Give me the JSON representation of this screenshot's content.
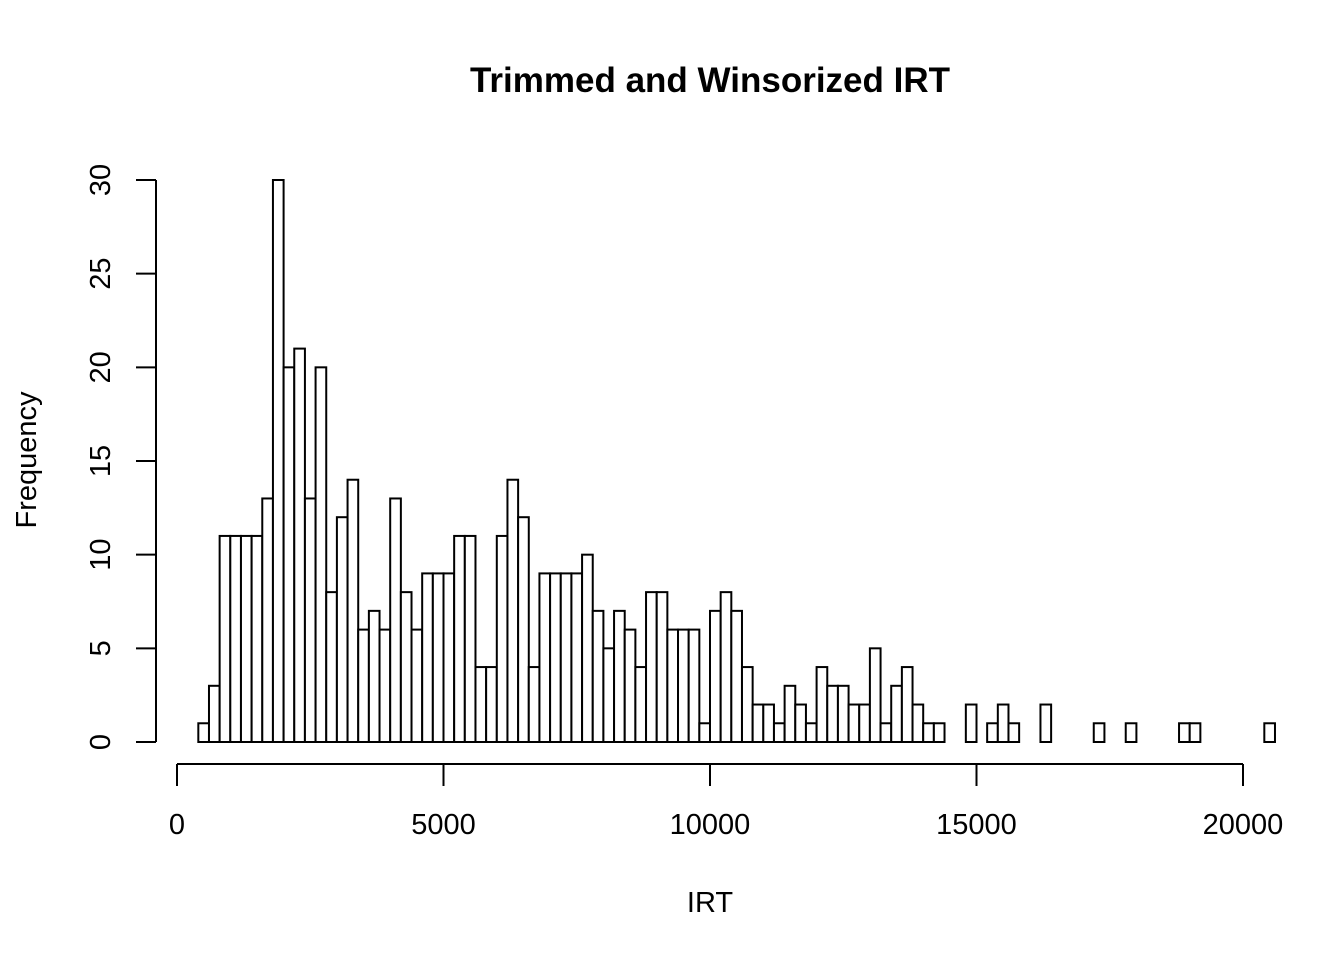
{
  "chart_data": {
    "type": "bar",
    "title": "Trimmed and Winsorized IRT",
    "xlabel": "IRT",
    "ylabel": "Frequency",
    "xlim": [
      0,
      20000
    ],
    "ylim": [
      0,
      30
    ],
    "x_ticks": [
      "0",
      "5000",
      "10000",
      "15000",
      "20000"
    ],
    "y_ticks": [
      "0",
      "5",
      "10",
      "15",
      "20",
      "25",
      "30"
    ],
    "bin_width": 200,
    "bin_start": 400,
    "values": [
      1,
      3,
      11,
      11,
      11,
      11,
      13,
      30,
      20,
      21,
      13,
      20,
      8,
      12,
      14,
      6,
      7,
      6,
      13,
      8,
      6,
      9,
      9,
      9,
      11,
      11,
      4,
      4,
      11,
      14,
      12,
      4,
      9,
      9,
      9,
      9,
      10,
      7,
      5,
      7,
      6,
      4,
      8,
      8,
      6,
      6,
      6,
      1,
      7,
      8,
      7,
      4,
      2,
      2,
      1,
      3,
      2,
      1,
      4,
      3,
      3,
      2,
      2,
      5,
      1,
      3,
      4,
      2,
      1,
      1,
      0,
      0,
      2,
      0,
      1,
      2,
      1,
      0,
      0,
      2,
      0,
      0,
      0,
      0,
      1,
      0,
      0,
      1,
      0,
      0,
      0,
      0,
      1,
      1,
      0,
      0,
      0,
      0,
      0,
      0,
      1
    ],
    "grid": false,
    "legend": "none"
  }
}
